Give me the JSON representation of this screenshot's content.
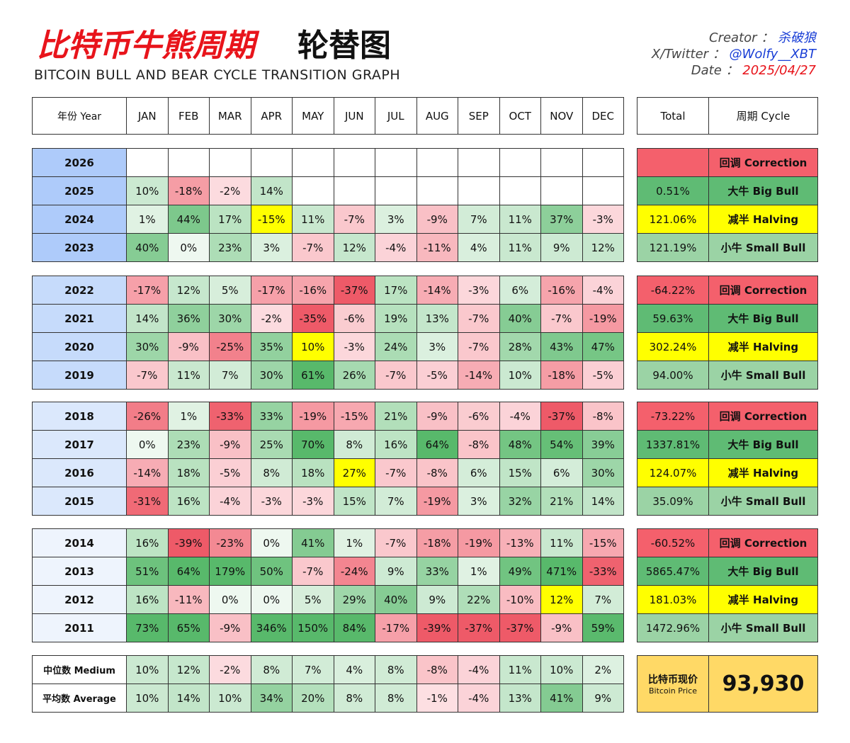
{
  "header": {
    "title_red": "比特币牛熊周期",
    "title_black": "轮替图",
    "subtitle": "BITCOIN BULL AND BEAR CYCLE TRANSITION GRAPH",
    "creator_label": "Creator ：",
    "creator": "杀破狼",
    "twitter_label": "X/Twitter ：",
    "twitter": "@Wolfy__XBT",
    "date_label": "Date ：",
    "date": "2025/04/27"
  },
  "table": {
    "year_header": "年份 Year",
    "months": [
      "JAN",
      "FEB",
      "MAR",
      "APR",
      "MAY",
      "JUN",
      "JUL",
      "AUG",
      "SEP",
      "OCT",
      "NOV",
      "DEC"
    ],
    "total_header": "Total",
    "cycle_header": "周期 Cycle",
    "groups": [
      {
        "rows": [
          {
            "year": "2026",
            "months": [
              null,
              null,
              null,
              null,
              null,
              null,
              null,
              null,
              null,
              null,
              null,
              null
            ],
            "total": null,
            "cycle": "回调 Correction"
          },
          {
            "year": "2025",
            "months": [
              "10%",
              "-18%",
              "-2%",
              "14%",
              null,
              null,
              null,
              null,
              null,
              null,
              null,
              null
            ],
            "total": "0.51%",
            "cycle": "大牛 Big Bull"
          },
          {
            "year": "2024",
            "months": [
              "1%",
              "44%",
              "17%",
              {
                "value": "-15%",
                "color": "#ffff00"
              },
              "11%",
              "-7%",
              "3%",
              "-9%",
              "7%",
              "11%",
              "37%",
              "-3%"
            ],
            "total": "121.06%",
            "cycle": "减半 Halving"
          },
          {
            "year": "2023",
            "months": [
              "40%",
              "0%",
              "23%",
              "3%",
              "-7%",
              "12%",
              "-4%",
              "-11%",
              "4%",
              "11%",
              "9%",
              "12%"
            ],
            "total": "121.19%",
            "cycle": "小牛 Small Bull"
          }
        ]
      },
      {
        "rows": [
          {
            "year": "2022",
            "months": [
              "-17%",
              "12%",
              "5%",
              "-17%",
              "-16%",
              "-37%",
              "17%",
              "-14%",
              "-3%",
              "6%",
              "-16%",
              "-4%"
            ],
            "total": "-64.22%",
            "cycle": "回调 Correction"
          },
          {
            "year": "2021",
            "months": [
              "14%",
              "36%",
              "30%",
              "-2%",
              "-35%",
              "-6%",
              "19%",
              "13%",
              "-7%",
              "40%",
              "-7%",
              "-19%"
            ],
            "total": "59.63%",
            "cycle": "大牛 Big Bull"
          },
          {
            "year": "2020",
            "months": [
              "30%",
              "-9%",
              "-25%",
              "35%",
              {
                "value": "10%",
                "color": "#ffff00"
              },
              "-3%",
              "24%",
              "3%",
              "-7%",
              "28%",
              "43%",
              "47%"
            ],
            "total": "302.24%",
            "cycle": "减半 Halving"
          },
          {
            "year": "2019",
            "months": [
              "-7%",
              "11%",
              "7%",
              "30%",
              "61%",
              "26%",
              "-7%",
              "-5%",
              "-14%",
              "10%",
              "-18%",
              "-5%"
            ],
            "total": "94.00%",
            "cycle": "小牛 Small Bull"
          }
        ]
      },
      {
        "rows": [
          {
            "year": "2018",
            "months": [
              "-26%",
              "1%",
              "-33%",
              "33%",
              "-19%",
              "-15%",
              "21%",
              "-9%",
              "-6%",
              "-4%",
              "-37%",
              "-8%"
            ],
            "total": "-73.22%",
            "cycle": "回调 Correction"
          },
          {
            "year": "2017",
            "months": [
              "0%",
              "23%",
              "-9%",
              "25%",
              "70%",
              "8%",
              "16%",
              "64%",
              "-8%",
              "48%",
              "54%",
              "39%"
            ],
            "total": "1337.81%",
            "cycle": "大牛 Big Bull"
          },
          {
            "year": "2016",
            "months": [
              "-14%",
              "18%",
              "-5%",
              "8%",
              "18%",
              {
                "value": "27%",
                "color": "#ffff00"
              },
              "-7%",
              "-8%",
              "6%",
              "15%",
              "6%",
              "30%"
            ],
            "total": "124.07%",
            "cycle": "减半 Halving"
          },
          {
            "year": "2015",
            "months": [
              "-31%",
              "16%",
              "-4%",
              "-3%",
              "-3%",
              "15%",
              "7%",
              "-19%",
              "3%",
              "32%",
              "21%",
              "14%"
            ],
            "total": "35.09%",
            "cycle": "小牛 Small Bull"
          }
        ]
      },
      {
        "rows": [
          {
            "year": "2014",
            "months": [
              "16%",
              "-39%",
              "-23%",
              "0%",
              "41%",
              "1%",
              "-7%",
              "-18%",
              "-19%",
              "-13%",
              "11%",
              "-15%"
            ],
            "total": "-60.52%",
            "cycle": "回调 Correction"
          },
          {
            "year": "2013",
            "months": [
              "51%",
              "64%",
              "179%",
              "50%",
              "-7%",
              "-24%",
              "9%",
              "33%",
              "1%",
              "49%",
              "471%",
              "-33%"
            ],
            "total": "5865.47%",
            "cycle": "大牛 Big Bull"
          },
          {
            "year": "2012",
            "months": [
              "16%",
              "-11%",
              "0%",
              "0%",
              "5%",
              "29%",
              "40%",
              "9%",
              "22%",
              "-10%",
              {
                "value": "12%",
                "color": "#ffff00"
              },
              "7%"
            ],
            "total": "181.03%",
            "cycle": "减半 Halving"
          },
          {
            "year": "2011",
            "months": [
              "73%",
              "65%",
              "-9%",
              "346%",
              "150%",
              "84%",
              "-17%",
              "-39%",
              "-37%",
              "-37%",
              "-9%",
              "59%"
            ],
            "total": "1472.96%",
            "cycle": "小牛 Small Bull"
          }
        ]
      }
    ],
    "median": {
      "label": "中位数 Medium",
      "values": [
        "10%",
        "12%",
        "-2%",
        "8%",
        "7%",
        "4%",
        "8%",
        "-8%",
        "-4%",
        "11%",
        "10%",
        "2%"
      ]
    },
    "average": {
      "label": "平均数 Average",
      "values": [
        "10%",
        "14%",
        "10%",
        "34%",
        "20%",
        "8%",
        "8%",
        "-1%",
        "-4%",
        "13%",
        "41%",
        "9%"
      ]
    }
  },
  "price": {
    "label_cn": "比特币现价",
    "label_en": "Bitcoin Price",
    "value": "93,930"
  }
}
